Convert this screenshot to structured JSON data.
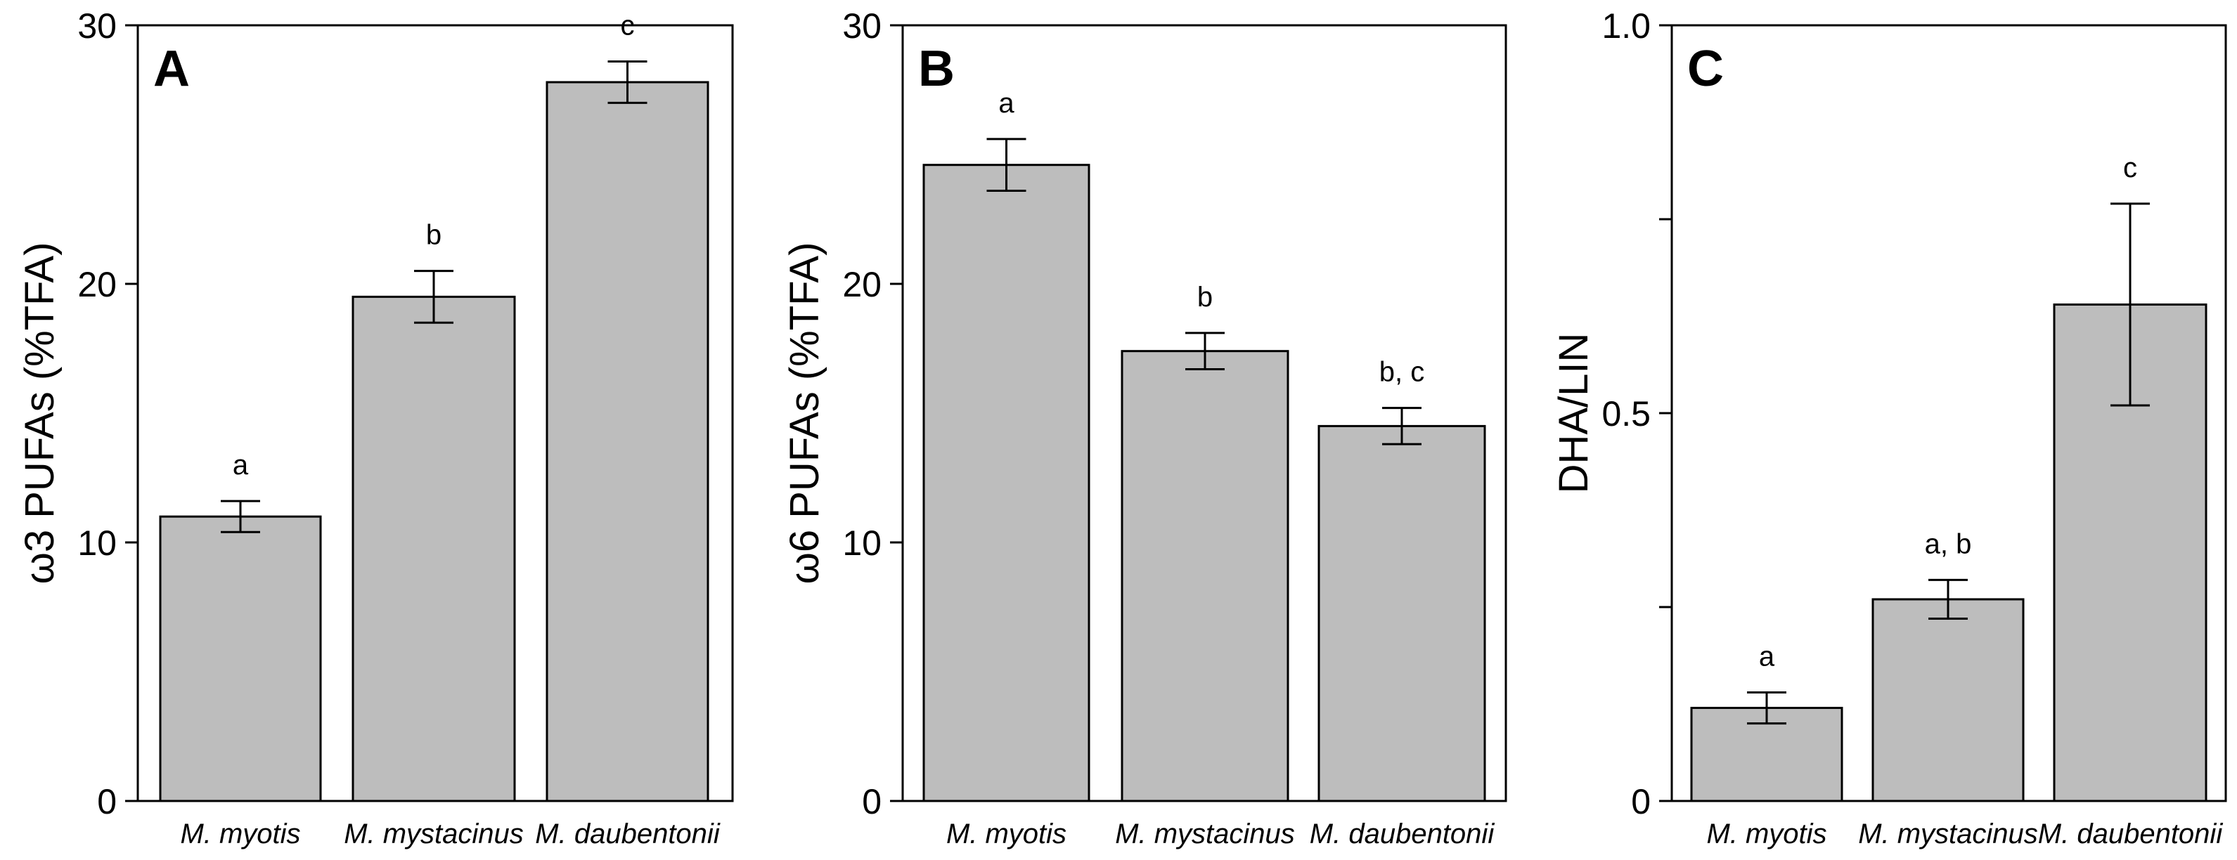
{
  "colors": {
    "bar_fill": "#bdbdbd",
    "stroke": "#000000",
    "background": "#ffffff"
  },
  "chart_data": [
    {
      "type": "bar",
      "panel": "A",
      "ylabel": "ω3 PUFAs (%TFA)",
      "ylim": [
        0,
        30
      ],
      "yticks": [
        0,
        10,
        20,
        30
      ],
      "ytick_labels": [
        "0",
        "10",
        "20",
        "30"
      ],
      "categories": [
        "M. myotis",
        "M. mystacinus",
        "M. daubentonii"
      ],
      "values": [
        11.0,
        19.5,
        27.8
      ],
      "errors": [
        0.6,
        1.0,
        0.8
      ],
      "significance": [
        "a",
        "b",
        "c"
      ],
      "grid": false
    },
    {
      "type": "bar",
      "panel": "B",
      "ylabel": "ω6 PUFAs (%TFA)",
      "ylim": [
        0,
        30
      ],
      "yticks": [
        0,
        10,
        20,
        30
      ],
      "ytick_labels": [
        "0",
        "10",
        "20",
        "30"
      ],
      "categories": [
        "M. myotis",
        "M. mystacinus",
        "M. daubentonii"
      ],
      "values": [
        24.6,
        17.4,
        14.5
      ],
      "errors": [
        1.0,
        0.7,
        0.7
      ],
      "significance": [
        "a",
        "b",
        "b, c"
      ],
      "grid": false
    },
    {
      "type": "bar",
      "panel": "C",
      "ylabel": "DHA/LIN",
      "ylim": [
        0,
        1.0
      ],
      "yticks": [
        0,
        0.25,
        0.5,
        0.75,
        1.0
      ],
      "ytick_labels": [
        "0",
        "",
        "0.5",
        "",
        "1.0"
      ],
      "categories": [
        "M. myotis",
        "M. mystacinus",
        "M. daubentonii"
      ],
      "values": [
        0.12,
        0.26,
        0.64
      ],
      "errors": [
        0.02,
        0.025,
        0.13
      ],
      "significance": [
        "a",
        "a, b",
        "c"
      ],
      "grid": false
    }
  ]
}
